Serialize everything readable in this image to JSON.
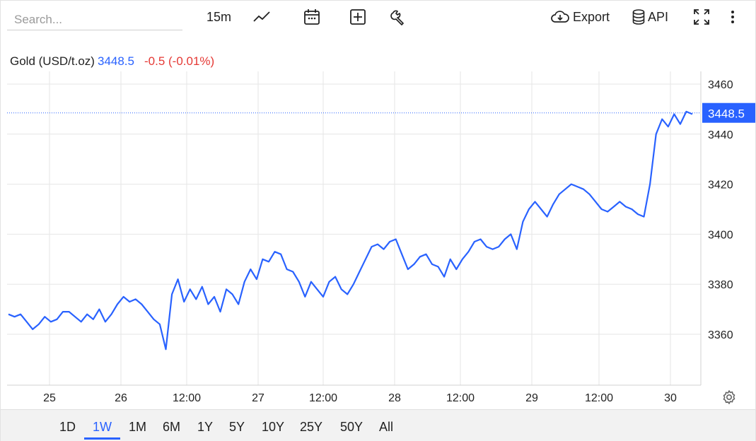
{
  "search": {
    "placeholder": "Search..."
  },
  "toolbar": {
    "interval": "15m",
    "export_label": "Export",
    "api_label": "API",
    "icons": [
      "line-chart-icon",
      "calendar-icon",
      "add-indicator-icon",
      "wrench-icon",
      "cloud-download-icon",
      "database-icon",
      "fullscreen-icon",
      "more-vertical-icon"
    ]
  },
  "ticker": {
    "name": "Gold (USD/t.oz)",
    "price": "3448.5",
    "change": "-0.5 (-0.01%)"
  },
  "colors": {
    "line": "#2962ff",
    "change_negative": "#e53935",
    "grid": "#e6e6e6"
  },
  "chart_data": {
    "type": "line",
    "title": "Gold (USD/t.oz)",
    "xlabel": "",
    "ylabel": "",
    "x_tick_labels": [
      "25",
      "26",
      "12:00",
      "27",
      "12:00",
      "28",
      "12:00",
      "29",
      "12:00",
      "30"
    ],
    "y_ticks": [
      3360,
      3380,
      3400,
      3420,
      3440,
      3460
    ],
    "ylim": [
      3340,
      3467
    ],
    "grid": true,
    "last_value": 3448.5,
    "last_value_label": "3448.5",
    "series": [
      {
        "values": [
          3368,
          3367,
          3368,
          3365,
          3362,
          3364,
          3367,
          3365,
          3366,
          3369,
          3369,
          3367,
          3365,
          3368,
          3366,
          3370,
          3365,
          3368,
          3372,
          3375,
          3373,
          3374,
          3372,
          3369,
          3366,
          3364,
          3354,
          3376,
          3382,
          3373,
          3378,
          3374,
          3379,
          3372,
          3375,
          3369,
          3378,
          3376,
          3372,
          3381,
          3386,
          3382,
          3390,
          3389,
          3393,
          3392,
          3386,
          3385,
          3381,
          3375,
          3381,
          3378,
          3375,
          3381,
          3383,
          3378,
          3376,
          3380,
          3385,
          3390,
          3395,
          3396,
          3394,
          3397,
          3398,
          3392,
          3386,
          3388,
          3391,
          3392,
          3388,
          3387,
          3383,
          3390,
          3386,
          3390,
          3393,
          3397,
          3398,
          3395,
          3394,
          3395,
          3398,
          3400,
          3394,
          3405,
          3410,
          3413,
          3410,
          3407,
          3412,
          3416,
          3418,
          3420,
          3419,
          3418,
          3416,
          3413,
          3410,
          3409,
          3411,
          3413,
          3411,
          3410,
          3408,
          3407,
          3420,
          3440,
          3446,
          3443,
          3448,
          3444,
          3449,
          3448
        ]
      }
    ]
  },
  "time_ranges": [
    "1D",
    "1W",
    "1M",
    "6M",
    "1Y",
    "5Y",
    "10Y",
    "25Y",
    "50Y",
    "All"
  ],
  "active_range": "1W"
}
